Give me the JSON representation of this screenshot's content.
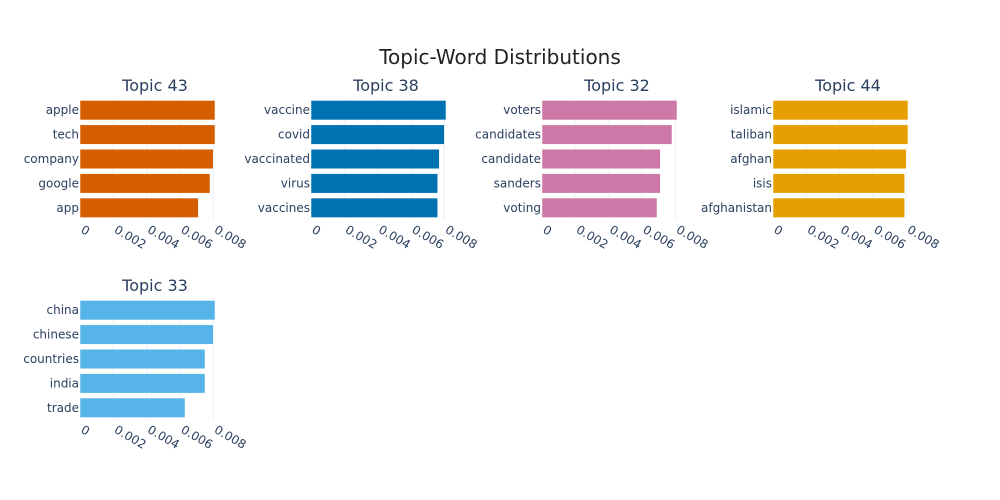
{
  "title": "Topic-Word Distributions",
  "chart_data": [
    {
      "type": "bar",
      "orientation": "horizontal",
      "title": "Topic 43",
      "categories": [
        "apple",
        "tech",
        "company",
        "google",
        "app"
      ],
      "values": [
        0.0081,
        0.0081,
        0.008,
        0.0078,
        0.0071
      ],
      "color": "#D55E00",
      "xlim": [
        0,
        0.009
      ],
      "xticks": [
        "0",
        "0.002",
        "0.004",
        "0.006",
        "0.008"
      ],
      "xtick_values": [
        0,
        0.002,
        0.004,
        0.006,
        0.008
      ],
      "grid": true
    },
    {
      "type": "bar",
      "orientation": "horizontal",
      "title": "Topic 38",
      "categories": [
        "vaccine",
        "covid",
        "vaccinated",
        "virus",
        "vaccines"
      ],
      "values": [
        0.0081,
        0.008,
        0.0077,
        0.0076,
        0.0076
      ],
      "color": "#0072B2",
      "xlim": [
        0,
        0.009
      ],
      "xticks": [
        "0",
        "0.002",
        "0.004",
        "0.006",
        "0.008"
      ],
      "xtick_values": [
        0,
        0.002,
        0.004,
        0.006,
        0.008
      ],
      "grid": true
    },
    {
      "type": "bar",
      "orientation": "horizontal",
      "title": "Topic 32",
      "categories": [
        "voters",
        "candidates",
        "candidate",
        "sanders",
        "voting"
      ],
      "values": [
        0.0081,
        0.0078,
        0.0071,
        0.0071,
        0.0069
      ],
      "color": "#CC79A7",
      "xlim": [
        0,
        0.009
      ],
      "xticks": [
        "0",
        "0.002",
        "0.004",
        "0.006",
        "0.008"
      ],
      "xtick_values": [
        0,
        0.002,
        0.004,
        0.006,
        0.008
      ],
      "grid": true
    },
    {
      "type": "bar",
      "orientation": "horizontal",
      "title": "Topic 44",
      "categories": [
        "islamic",
        "taliban",
        "afghan",
        "isis",
        "afghanistan"
      ],
      "values": [
        0.0081,
        0.0081,
        0.008,
        0.0079,
        0.0079
      ],
      "color": "#E69F00",
      "xlim": [
        0,
        0.009
      ],
      "xticks": [
        "0",
        "0.002",
        "0.004",
        "0.006",
        "0.008"
      ],
      "xtick_values": [
        0,
        0.002,
        0.004,
        0.006,
        0.008
      ],
      "grid": true
    },
    {
      "type": "bar",
      "orientation": "horizontal",
      "title": "Topic 33",
      "categories": [
        "china",
        "chinese",
        "countries",
        "india",
        "trade"
      ],
      "values": [
        0.0081,
        0.008,
        0.0075,
        0.0075,
        0.0063
      ],
      "color": "#56B4E9",
      "xlim": [
        0,
        0.009
      ],
      "xticks": [
        "0",
        "0.002",
        "0.004",
        "0.006",
        "0.008"
      ],
      "xtick_values": [
        0,
        0.002,
        0.004,
        0.006,
        0.008
      ],
      "grid": true
    }
  ]
}
